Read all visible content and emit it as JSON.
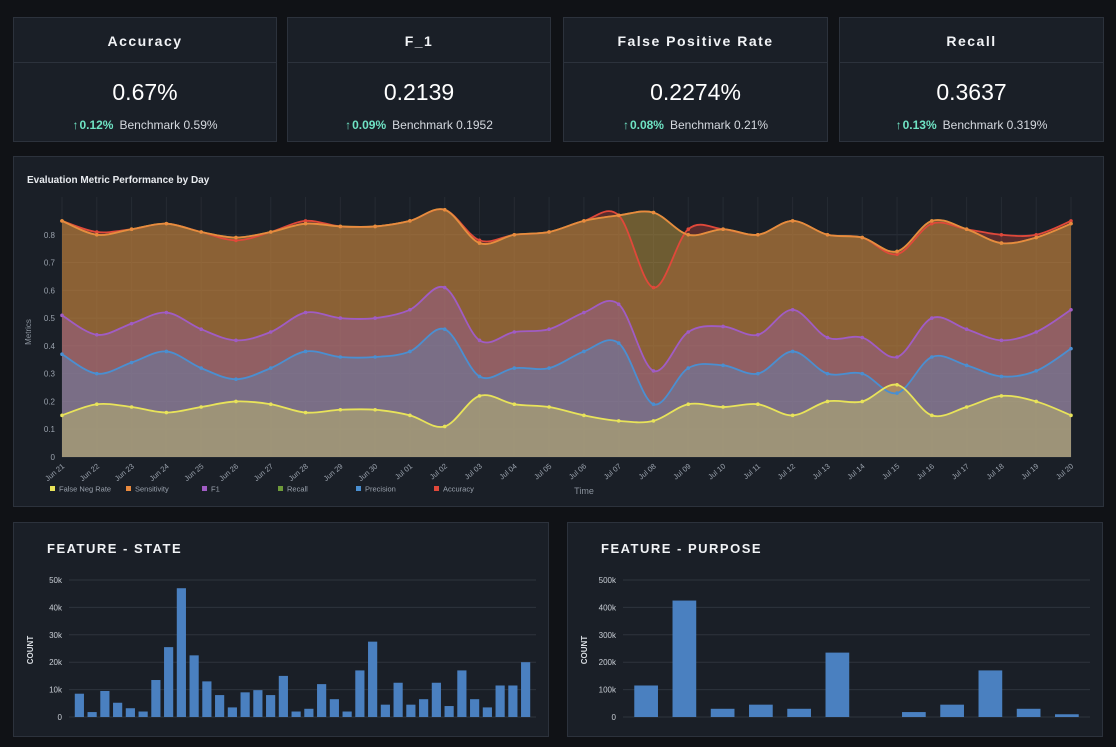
{
  "kpis": [
    {
      "title": "Accuracy",
      "value": "0.67%",
      "delta": "0.12%",
      "benchmark": "Benchmark 0.59%"
    },
    {
      "title": "F_1",
      "value": "0.2139",
      "delta": "0.09%",
      "benchmark": "Benchmark 0.1952"
    },
    {
      "title": "False Positive Rate",
      "value": "0.2274%",
      "delta": "0.08%",
      "benchmark": "Benchmark 0.21%"
    },
    {
      "title": "Recall",
      "value": "0.3637",
      "delta": "0.13%",
      "benchmark": "Benchmark 0.319%"
    }
  ],
  "icons": {
    "delta_up": "arrow-up-icon"
  },
  "colors": {
    "background": "#101216",
    "panel": "#1a1f27",
    "delta": "#6fe3c4",
    "false_neg_rate": "#e8e35a",
    "sensitivity": "#e98a3e",
    "f1": "#a05cc4",
    "recall": "#6e9a3a",
    "precision": "#4a8fd1",
    "accuracy": "#e0483a",
    "bars": "#4a80c0"
  },
  "chart_data": [
    {
      "type": "area",
      "title": "Evaluation Metric Performance by Day",
      "xlabel": "Time",
      "ylabel": "Metrics",
      "ylim": [
        0,
        0.9
      ],
      "yticks": [
        "0",
        "0.1",
        "0.2",
        "0.3",
        "0.4",
        "0.5",
        "0.6",
        "0.7",
        "0.8"
      ],
      "legend_position": "bottom-left",
      "categories": [
        "Jun 21",
        "Jun 22",
        "Jun 23",
        "Jun 24",
        "Jun 25",
        "Jun 26",
        "Jun 27",
        "Jun 28",
        "Jun 29",
        "Jun 30",
        "Jul 01",
        "Jul 02",
        "Jul 03",
        "Jul 04",
        "Jul 05",
        "Jul 06",
        "Jul 07",
        "Jul 08",
        "Jul 09",
        "Jul 10",
        "Jul 11",
        "Jul 12",
        "Jul 13",
        "Jul 14",
        "Jul 15",
        "Jul 16",
        "Jul 17",
        "Jul 18",
        "Jul 19",
        "Jul 20"
      ],
      "series": [
        {
          "name": "Accuracy",
          "color": "#e0483a",
          "values": [
            0.85,
            0.81,
            0.82,
            0.84,
            0.81,
            0.78,
            0.81,
            0.85,
            0.83,
            0.83,
            0.85,
            0.89,
            0.78,
            0.8,
            0.81,
            0.85,
            0.87,
            0.61,
            0.82,
            0.82,
            0.8,
            0.85,
            0.8,
            0.79,
            0.73,
            0.84,
            0.82,
            0.8,
            0.8,
            0.85
          ]
        },
        {
          "name": "Recall",
          "color": "#6e9a3a",
          "values": [
            0.85,
            0.8,
            0.82,
            0.84,
            0.81,
            0.79,
            0.81,
            0.84,
            0.83,
            0.83,
            0.85,
            0.89,
            0.77,
            0.8,
            0.81,
            0.85,
            0.87,
            0.88,
            0.8,
            0.82,
            0.8,
            0.85,
            0.8,
            0.79,
            0.74,
            0.85,
            0.82,
            0.77,
            0.79,
            0.84
          ]
        },
        {
          "name": "Sensitivity",
          "color": "#e98a3e",
          "values": [
            0.85,
            0.8,
            0.82,
            0.84,
            0.81,
            0.79,
            0.81,
            0.84,
            0.83,
            0.83,
            0.85,
            0.89,
            0.77,
            0.8,
            0.81,
            0.85,
            0.87,
            0.88,
            0.8,
            0.82,
            0.8,
            0.85,
            0.8,
            0.79,
            0.74,
            0.85,
            0.82,
            0.77,
            0.79,
            0.84
          ]
        },
        {
          "name": "F1",
          "color": "#a05cc4",
          "values": [
            0.51,
            0.44,
            0.48,
            0.52,
            0.46,
            0.42,
            0.45,
            0.52,
            0.5,
            0.5,
            0.53,
            0.61,
            0.42,
            0.45,
            0.46,
            0.52,
            0.55,
            0.31,
            0.45,
            0.47,
            0.44,
            0.53,
            0.43,
            0.43,
            0.36,
            0.5,
            0.46,
            0.42,
            0.45,
            0.53
          ]
        },
        {
          "name": "Precision",
          "color": "#4a8fd1",
          "values": [
            0.37,
            0.3,
            0.34,
            0.38,
            0.32,
            0.28,
            0.32,
            0.38,
            0.36,
            0.36,
            0.38,
            0.46,
            0.29,
            0.32,
            0.32,
            0.38,
            0.41,
            0.19,
            0.32,
            0.33,
            0.3,
            0.38,
            0.3,
            0.3,
            0.23,
            0.36,
            0.33,
            0.29,
            0.31,
            0.39
          ]
        },
        {
          "name": "False Neg Rate",
          "color": "#e8e35a",
          "values": [
            0.15,
            0.19,
            0.18,
            0.16,
            0.18,
            0.2,
            0.19,
            0.16,
            0.17,
            0.17,
            0.15,
            0.11,
            0.22,
            0.19,
            0.18,
            0.15,
            0.13,
            0.13,
            0.19,
            0.18,
            0.19,
            0.15,
            0.2,
            0.2,
            0.26,
            0.15,
            0.18,
            0.22,
            0.2,
            0.15
          ]
        }
      ],
      "legend": [
        "False Neg Rate",
        "Sensitivity",
        "F1",
        "Recall",
        "Precision",
        "Accuracy"
      ]
    },
    {
      "type": "bar",
      "title": "FEATURE - STATE",
      "ylabel": "COUNT",
      "ylim": [
        0,
        50000
      ],
      "yticks": [
        "0",
        "10k",
        "20k",
        "30k",
        "40k",
        "50k"
      ],
      "values": [
        8500,
        1800,
        9500,
        5200,
        3200,
        2000,
        13500,
        25500,
        47000,
        22500,
        13000,
        8000,
        3500,
        9000,
        9800,
        8000,
        15000,
        2000,
        3000,
        12000,
        6500,
        2000,
        17000,
        27500,
        4500,
        12500,
        4500,
        6500,
        12500,
        4000,
        17000,
        6500,
        3500,
        11500,
        11500,
        20000
      ]
    },
    {
      "type": "bar",
      "title": "FEATURE - PURPOSE",
      "ylabel": "COUNT",
      "ylim": [
        0,
        500000
      ],
      "yticks": [
        "0",
        "100k",
        "200k",
        "300k",
        "400k",
        "500k"
      ],
      "values": [
        115000,
        425000,
        30000,
        45000,
        30000,
        235000,
        0,
        18000,
        45000,
        170000,
        30000,
        10000
      ]
    }
  ]
}
